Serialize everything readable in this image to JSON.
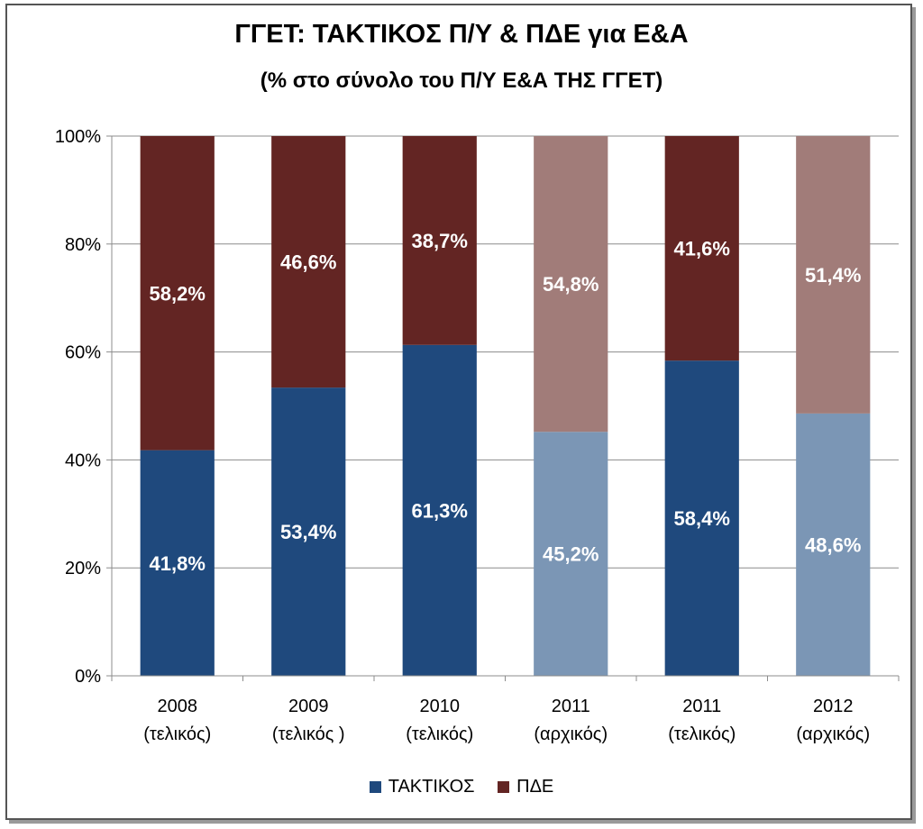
{
  "chart_data": {
    "type": "bar",
    "stacked": true,
    "title": "ΓΓΕΤ: ΤΑΚΤΙΚΟΣ Π/Υ & ΠΔΕ για Ε&Α",
    "subtitle": "(% στο σύνολο του Π/Υ Ε&Α ΤΗΣ ΓΓΕΤ)",
    "categories": [
      [
        "2008",
        "(τελικός)"
      ],
      [
        "2009",
        "(τελικός )"
      ],
      [
        "2010",
        "(τελικός)"
      ],
      [
        "2011",
        "(αρχικός)"
      ],
      [
        "2011",
        "(τελικός)"
      ],
      [
        "2012",
        "(αρχικός)"
      ]
    ],
    "series": [
      {
        "name": "ΤΑΚΤΙΚΟΣ",
        "values": [
          41.8,
          53.4,
          61.3,
          45.2,
          58.4,
          48.6
        ],
        "labels": [
          "41,8%",
          "53,4%",
          "61,3%",
          "45,2%",
          "58,4%",
          "48,6%"
        ],
        "color": "#1f497d",
        "light_color": "#7b96b5"
      },
      {
        "name": "ΠΔΕ",
        "values": [
          58.2,
          46.6,
          38.7,
          54.8,
          41.6,
          51.4
        ],
        "labels": [
          "58,2%",
          "46,6%",
          "38,7%",
          "54,8%",
          "41,6%",
          "51,4%"
        ],
        "color": "#632523",
        "light_color": "#a17c79"
      }
    ],
    "light_bars": [
      false,
      false,
      false,
      true,
      false,
      true
    ],
    "yticks": [
      "0%",
      "20%",
      "40%",
      "60%",
      "80%",
      "100%"
    ],
    "ylim": [
      0,
      100
    ],
    "grid": true,
    "legend_position": "bottom"
  }
}
